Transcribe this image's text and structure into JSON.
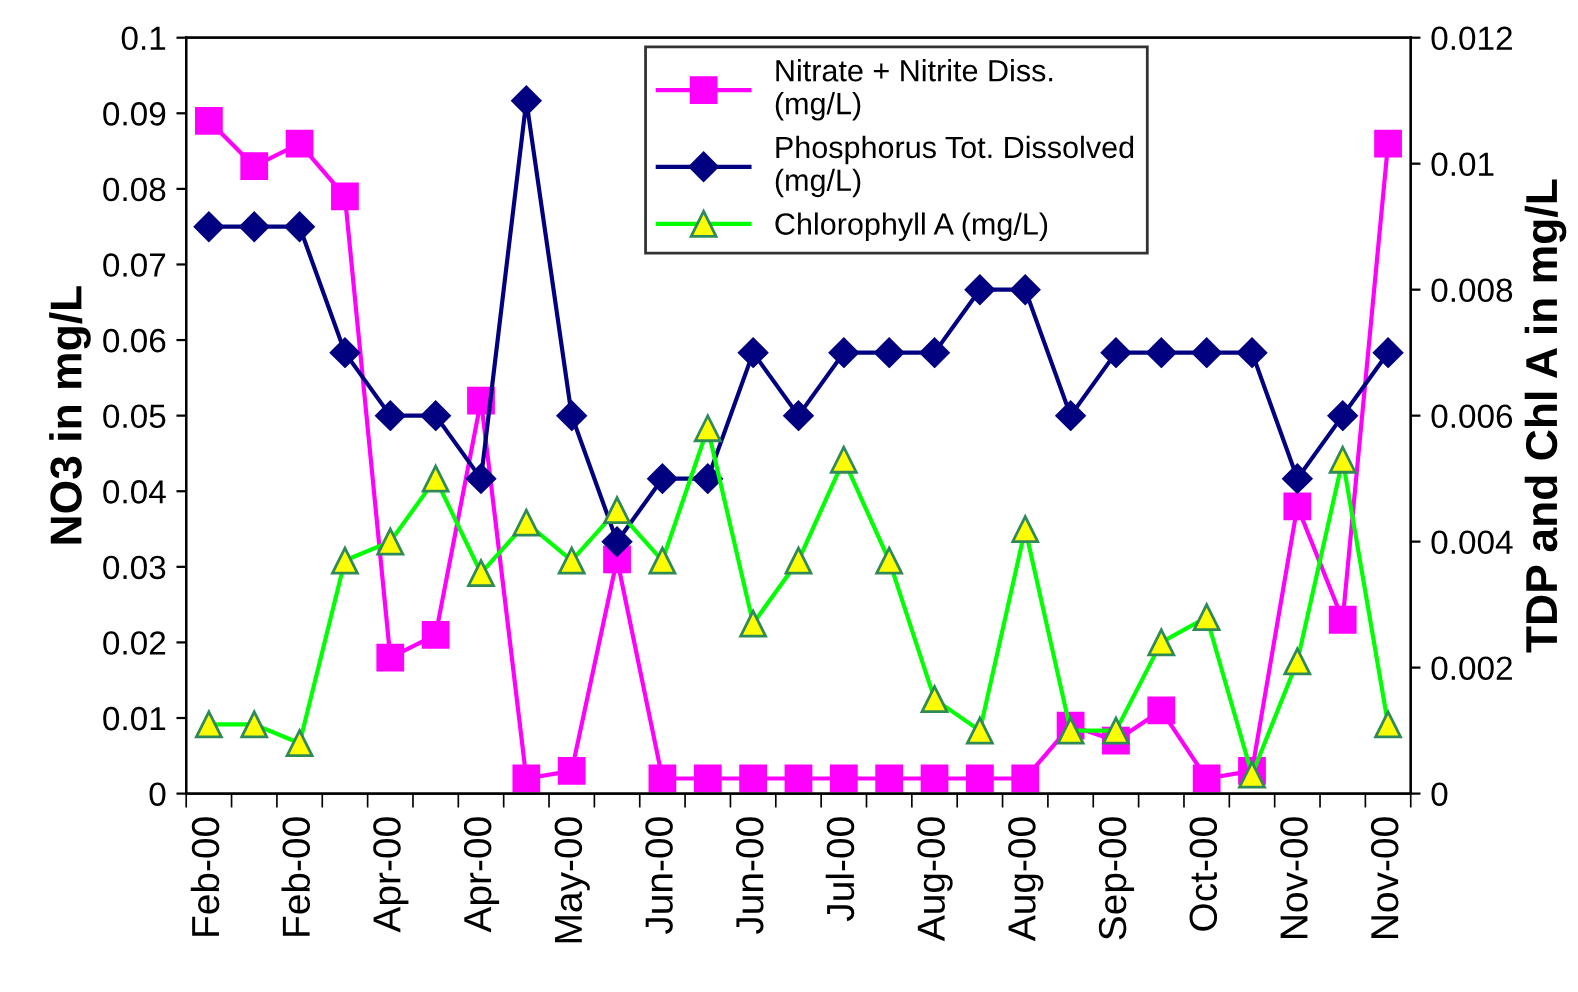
{
  "chart_data": {
    "type": "line",
    "categories": [
      "Feb-00",
      null,
      "Feb-00",
      null,
      "Apr-00",
      null,
      "Apr-00",
      null,
      "May-00",
      null,
      "Jun-00",
      null,
      "Jun-00",
      null,
      "Jul-00",
      null,
      "Aug-00",
      null,
      "Aug-00",
      null,
      "Sep-00",
      null,
      "Oct-00",
      null,
      "Nov-00",
      null,
      "Nov-00"
    ],
    "ylabel": "NO3 in mg/L",
    "y2label": "TDP and Chl A in mg/L",
    "ylim": [
      0,
      0.1
    ],
    "yticks": [
      0,
      0.01,
      0.02,
      0.03,
      0.04,
      0.05,
      0.06,
      0.07,
      0.08,
      0.09,
      0.1
    ],
    "y2lim": [
      0,
      0.012
    ],
    "y2ticks": [
      0,
      0.002,
      0.004,
      0.006,
      0.008,
      0.01,
      0.012
    ],
    "grid": false,
    "legend": "top",
    "line_style": "solid",
    "series": [
      {
        "name": "Nitrate + Nitrite Diss. (mg/L)",
        "color": "#ff00ff",
        "marker": "square",
        "values": [
          0.089,
          0.083,
          0.086,
          0.079,
          0.018,
          0.021,
          0.052,
          0.002,
          0.003,
          0.031,
          0.002,
          0.002,
          0.002,
          0.002,
          0.002,
          0.002,
          0.002,
          0.002,
          0.002,
          0.009,
          0.007,
          0.011,
          0.002,
          0.003,
          0.038,
          0.023,
          0.086
        ]
      },
      {
        "name": "Phosphorus Tot. Dissolved (mg/L)",
        "color": "#000080",
        "marker": "diamond",
        "axis": "y2",
        "values": [
          0.009,
          0.009,
          0.009,
          0.007,
          0.006,
          0.006,
          0.005,
          0.011,
          0.006,
          0.004,
          0.005,
          0.005,
          0.007,
          0.006,
          0.007,
          0.007,
          0.007,
          0.008,
          0.008,
          0.006,
          0.007,
          0.007,
          0.007,
          0.007,
          0.005,
          0.006,
          0.007
        ]
      },
      {
        "name": "Chlorophyll A (mg/L)",
        "color": "#00ff00",
        "marker": "triangle",
        "axis": "y2",
        "values": [
          0.0011,
          0.0011,
          0.0008,
          0.0037,
          0.004,
          0.005,
          0.0035,
          0.0043,
          0.0037,
          0.0045,
          0.0037,
          0.0058,
          0.0027,
          0.0037,
          0.0053,
          0.0037,
          0.0015,
          0.001,
          0.0042,
          0.001,
          0.001,
          0.0024,
          0.0028,
          0.0003,
          0.0021,
          0.0053,
          0.0011
        ]
      }
    ]
  }
}
